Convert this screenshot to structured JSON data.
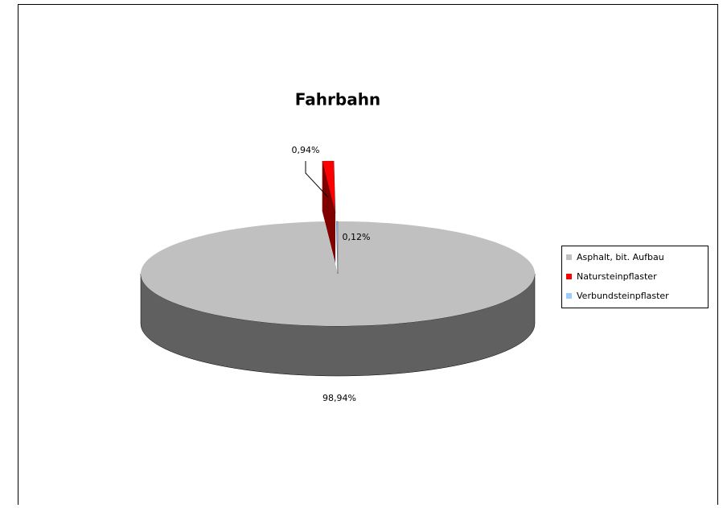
{
  "chart_data": {
    "type": "pie",
    "title": "Fahrbahn",
    "categories": [
      "Asphalt, bit. Aufbau",
      "Natursteinpflaster",
      "Verbundsteinpflaster"
    ],
    "values": [
      98.94,
      0.94,
      0.12
    ],
    "value_labels": [
      "98,94%",
      "0,94%",
      "0,12%"
    ],
    "colors": [
      "#c0c0c0",
      "#ff0000",
      "#99ccff"
    ],
    "legend": "right"
  }
}
